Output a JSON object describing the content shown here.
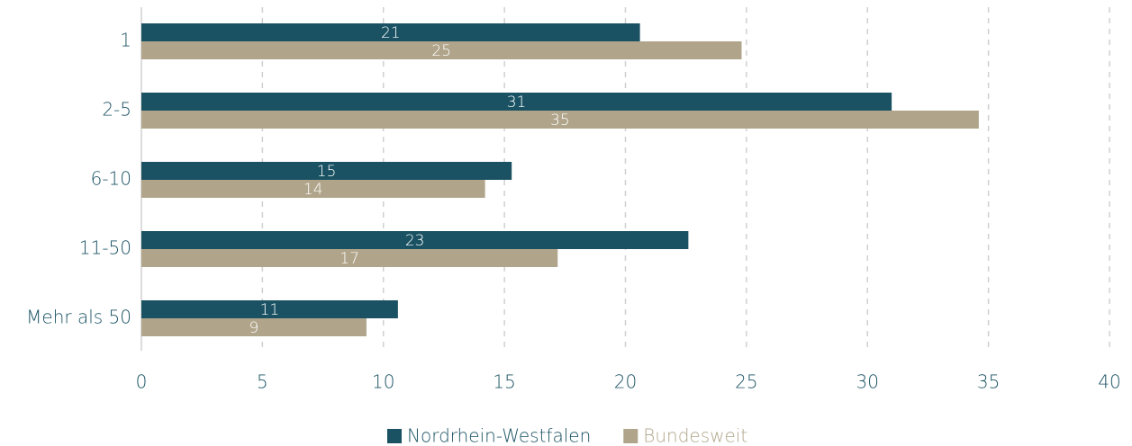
{
  "chart_data": {
    "type": "hbar",
    "categories": [
      "1",
      "2-5",
      "6-10",
      "11-50",
      "Mehr als 50"
    ],
    "series": [
      {
        "name": "Nordrhein-Westfalen",
        "color": "#1a5263",
        "values": [
          20.6,
          31.0,
          15.3,
          22.6,
          10.6
        ],
        "value_labels": [
          "21",
          "31",
          "15",
          "23",
          "11"
        ]
      },
      {
        "name": "Bundesweit",
        "color": "#b0a58a",
        "values": [
          24.8,
          34.6,
          14.2,
          17.2,
          9.3
        ],
        "value_labels": [
          "25",
          "35",
          "14",
          "17",
          "9"
        ]
      }
    ],
    "xlim": [
      0,
      40
    ],
    "xticks": [
      0,
      5,
      10,
      15,
      20,
      25,
      30,
      35,
      40
    ],
    "grid": true,
    "legend": "bottom"
  }
}
